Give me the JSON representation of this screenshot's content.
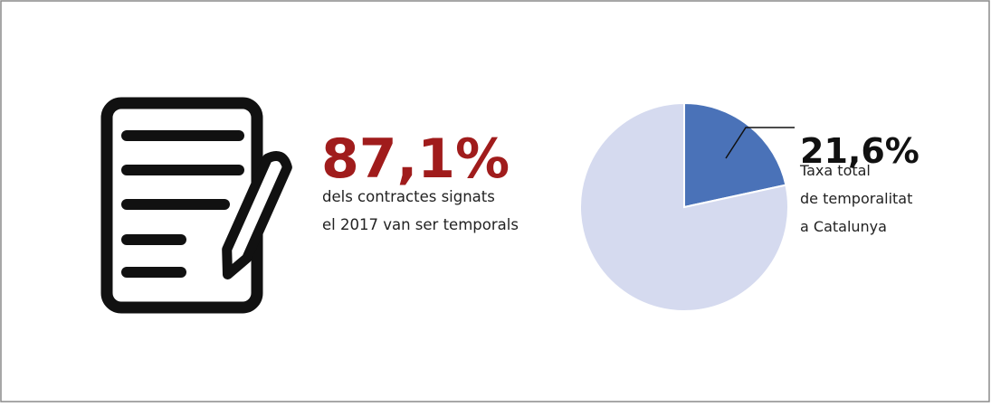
{
  "stat": {
    "label": "87,1%",
    "lines": [
      "dels contractes signats",
      "el 2017 van ser temporals"
    ]
  },
  "chart_data": {
    "type": "pie",
    "values": [
      21.6,
      78.4
    ],
    "value_labels": [
      "21,6%",
      null
    ],
    "colors": [
      "#4a72b8",
      "#d5daef"
    ],
    "caption": [
      "Taxa total",
      "de temporalitat",
      "a Catalunya"
    ]
  }
}
